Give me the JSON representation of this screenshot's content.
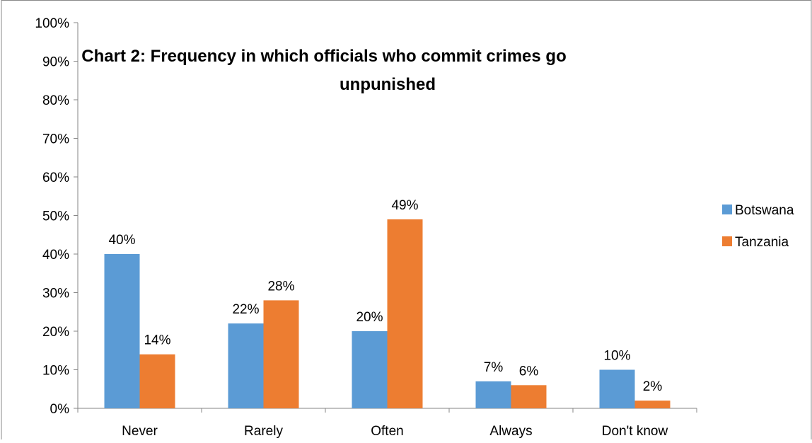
{
  "chart_data": {
    "type": "bar",
    "title": "Chart 2: Frequency in which officials who commit crimes go unpunished",
    "title_lines": [
      "Chart 2: Frequency in which officials who commit crimes go",
      "unpunished"
    ],
    "categories": [
      "Never",
      "Rarely",
      "Often",
      "Always",
      "Don't know"
    ],
    "series": [
      {
        "name": "Botswana",
        "values": [
          40,
          22,
          20,
          7,
          10
        ],
        "labels": [
          "40%",
          "22%",
          "20%",
          "7%",
          "10%"
        ],
        "color": "#5b9bd5"
      },
      {
        "name": "Tanzania",
        "values": [
          14,
          28,
          49,
          6,
          2
        ],
        "labels": [
          "14%",
          "28%",
          "49%",
          "6%",
          "2%"
        ],
        "color": "#ed7d31"
      }
    ],
    "y_ticks": [
      "0%",
      "10%",
      "20%",
      "30%",
      "40%",
      "50%",
      "60%",
      "70%",
      "80%",
      "90%",
      "100%"
    ],
    "ylim": [
      0,
      100
    ],
    "y_unit": "%",
    "grid": false,
    "legend_position": "right",
    "xlabel": "",
    "ylabel": ""
  }
}
